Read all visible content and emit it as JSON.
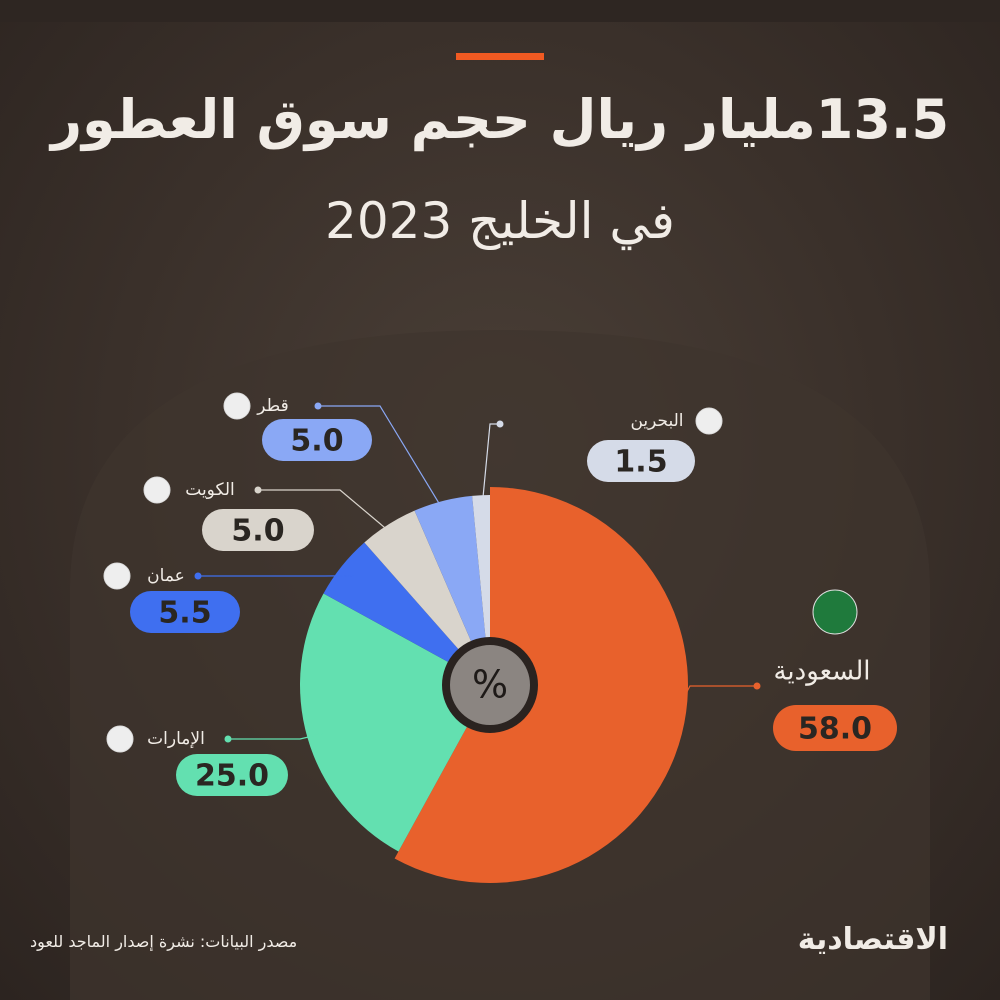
{
  "chart_data": {
    "type": "pie",
    "title": "13.5مليار ريال حجم سوق العطور",
    "subtitle": "في الخليج 2023",
    "center_label": "%",
    "categories": [
      "السعودية",
      "الإمارات",
      "عمان",
      "الكويت",
      "قطر",
      "البحرين"
    ],
    "values": [
      58,
      25,
      5.5,
      5,
      5,
      1.5
    ],
    "value_labels": [
      "58.0",
      "25.0",
      "5.5",
      "5.0",
      "5.0",
      "1.5"
    ],
    "colors": [
      "#e8612c",
      "#63e0b0",
      "#3f6ff0",
      "#d9d4cc",
      "#8aa8f5",
      "#d5dbe8"
    ],
    "source": "مصدر البيانات: نشرة إصدار الماجد للعود",
    "brand": "الاقتصادية"
  }
}
